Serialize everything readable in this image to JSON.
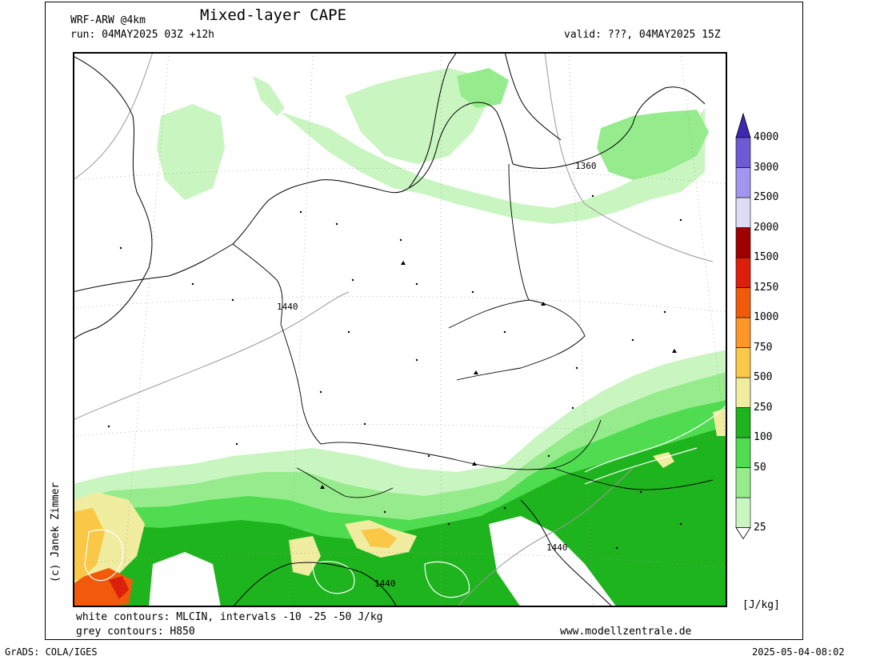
{
  "header": {
    "model": "WRF-ARW @4km",
    "title": "Mixed-layer CAPE",
    "run": "run: 04MAY2025 03Z +12h",
    "valid": "valid: ???, 04MAY2025 15Z"
  },
  "credit": "(c) Janek Zimmer",
  "footer": {
    "white_contours": "white contours: MLCIN, intervals -10 -25 -50 J/kg",
    "grey_contours": "grey contours: H850",
    "website": "www.modellzentrale.de",
    "grads": "GrADS: COLA/IGES",
    "timestamp": "2025-05-04-08:02"
  },
  "map": {
    "contour_labels": [
      "1360",
      "1440",
      "1440",
      "1440"
    ]
  },
  "colorbar": {
    "unit": "[J/kg]",
    "levels": [
      {
        "label": "25",
        "color": "#c8f5c0"
      },
      {
        "label": "50",
        "color": "#96ec8c"
      },
      {
        "label": "100",
        "color": "#50dc50"
      },
      {
        "label": "250",
        "color": "#1eb41e"
      },
      {
        "label": "500",
        "color": "#f0eca0"
      },
      {
        "label": "750",
        "color": "#fac846"
      },
      {
        "label": "1000",
        "color": "#ff9628"
      },
      {
        "label": "1250",
        "color": "#f05a0a"
      },
      {
        "label": "1500",
        "color": "#dc1e0a"
      },
      {
        "label": "2000",
        "color": "#a00000"
      },
      {
        "label": "2500",
        "color": "#dcdcf5"
      },
      {
        "label": "3000",
        "color": "#a096f0"
      },
      {
        "label": "4000",
        "color": "#6e5ad7"
      }
    ],
    "top_color": "#3c28b4"
  }
}
